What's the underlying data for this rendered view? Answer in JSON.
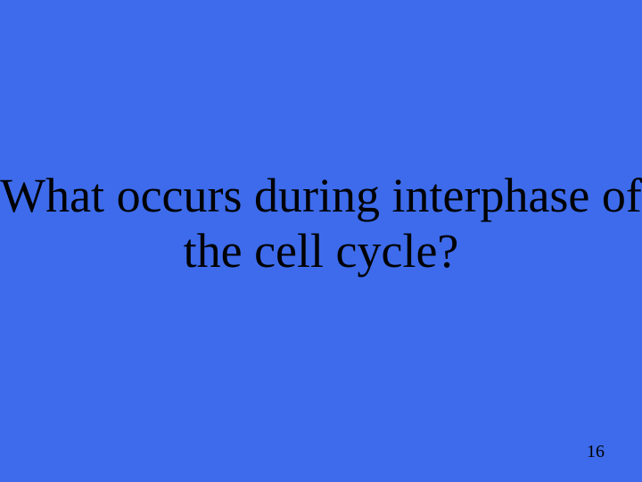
{
  "slide": {
    "background_color": "#3d6beb",
    "text_color": "#000000",
    "question": "What occurs during interphase of the cell cycle?",
    "page_number": "16",
    "font_family": "Times New Roman",
    "question_fontsize": 54,
    "page_number_fontsize": 20
  }
}
